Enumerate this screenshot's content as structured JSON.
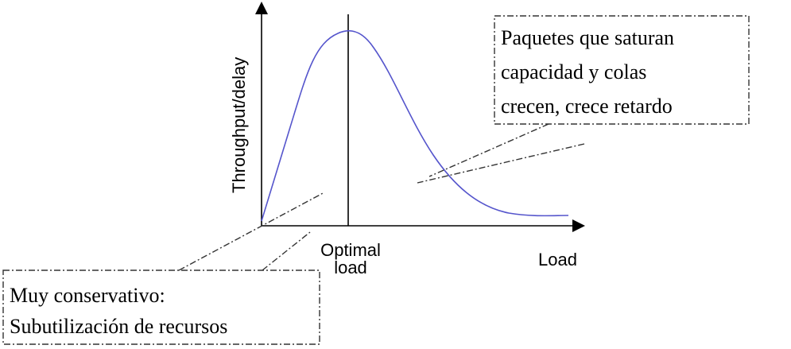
{
  "y_axis_label": "Throughput/delay",
  "x_axis_label": "Load",
  "optimal_label_line1": "Optimal",
  "optimal_label_line2": "load",
  "callout_high": {
    "lines": [
      "Paquetes que saturan",
      "capacidad y colas",
      "crecen, crece retardo"
    ]
  },
  "callout_low": {
    "lines": [
      "Muy conservativo:",
      "Subutilización de recursos"
    ]
  },
  "colors": {
    "curve": "#5555cc",
    "axes": "#000000",
    "callout_border": "#333333"
  }
}
